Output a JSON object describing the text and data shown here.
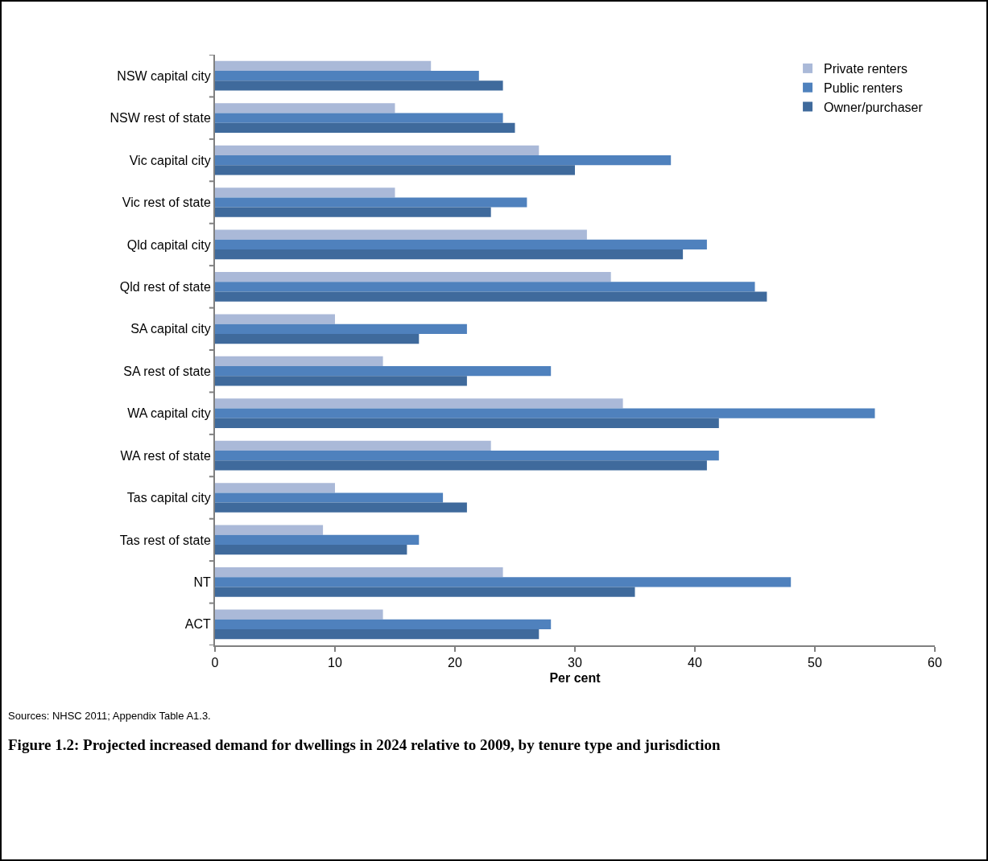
{
  "chart_data": {
    "type": "bar",
    "orientation": "horizontal",
    "title": "Figure 1.2: Projected increased demand for dwellings in 2024 relative to 2009, by tenure type and jurisdiction",
    "xlabel": "Per cent",
    "annotations": [
      "Sources: NHSC 2011; Appendix Table A1.3."
    ],
    "categories": [
      "NSW capital city",
      "NSW rest of state",
      "Vic capital city",
      "Vic rest of state",
      "Qld capital city",
      "Qld rest of state",
      "SA capital city",
      "SA rest of state",
      "WA capital city",
      "WA rest of state",
      "Tas capital city",
      "Tas rest of state",
      "NT",
      "ACT"
    ],
    "series": [
      {
        "name": "Private renters",
        "color": "#aab9d8",
        "values": [
          18,
          15,
          27,
          15,
          31,
          33,
          10,
          14,
          34,
          23,
          10,
          9,
          24,
          14
        ]
      },
      {
        "name": "Public renters",
        "color": "#4f81bd",
        "values": [
          22,
          24,
          38,
          26,
          41,
          45,
          21,
          28,
          55,
          42,
          19,
          17,
          48,
          28
        ]
      },
      {
        "name": "Owner/purchaser",
        "color": "#3f6a9c",
        "values": [
          24,
          25,
          30,
          23,
          39,
          46,
          17,
          21,
          42,
          41,
          21,
          16,
          35,
          27
        ]
      }
    ],
    "xlim": [
      0,
      60
    ],
    "xticks": [
      0,
      10,
      20,
      30,
      40,
      50,
      60
    ],
    "grid": false,
    "legend": "top right"
  }
}
